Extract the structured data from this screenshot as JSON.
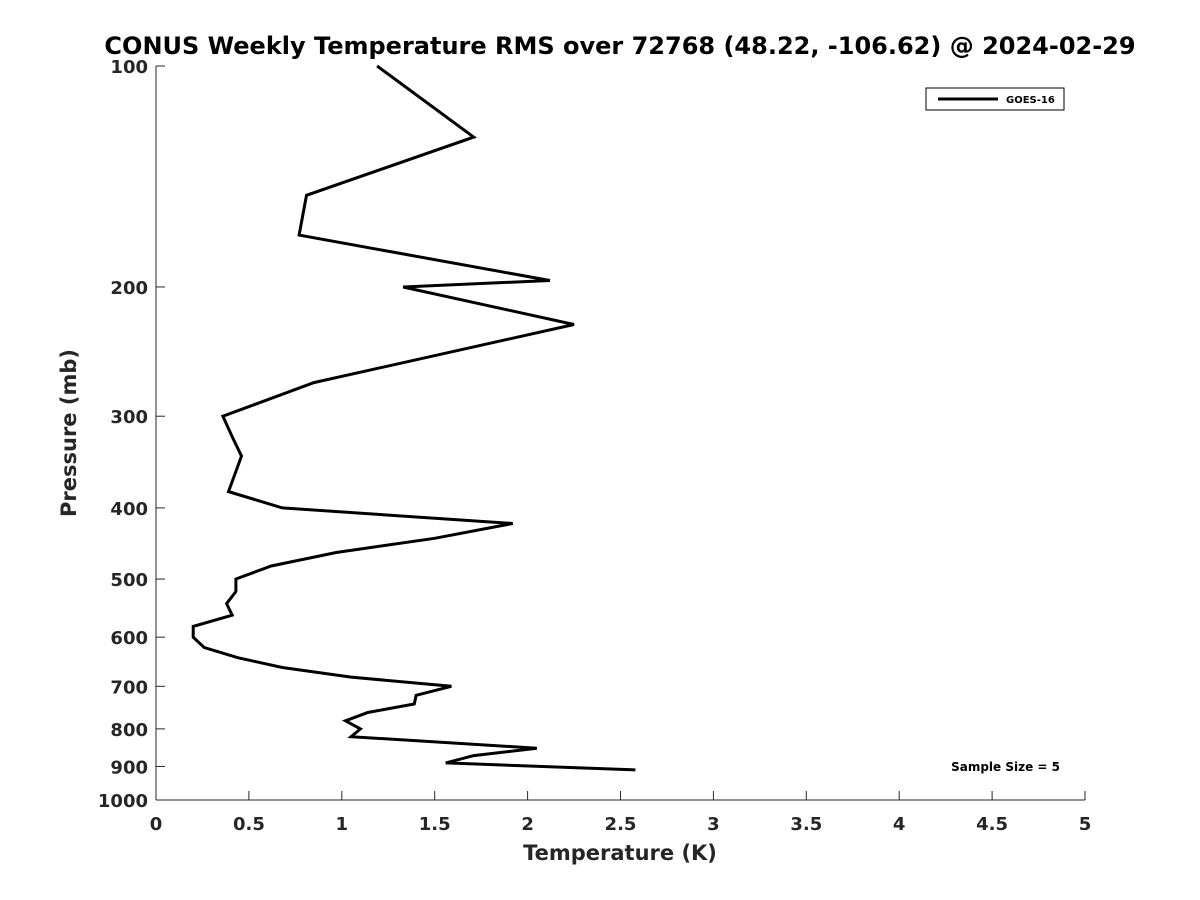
{
  "chart_data": {
    "type": "line",
    "title": "CONUS Weekly Temperature RMS over 72768 (48.22, -106.62) @ 2024-02-29",
    "xlabel": "Temperature (K)",
    "ylabel": "Pressure (mb)",
    "xlim": [
      0,
      5
    ],
    "ylim": [
      100,
      1000
    ],
    "yscale": "log",
    "yreversed": true,
    "xticks": [
      "0",
      "0.5",
      "1",
      "1.5",
      "2",
      "2.5",
      "3",
      "3.5",
      "4",
      "4.5",
      "5"
    ],
    "yticks": [
      "100",
      "200",
      "300",
      "400",
      "500",
      "600",
      "700",
      "800",
      "900",
      "1000"
    ],
    "grid": false,
    "legend_position": "top-right",
    "series": [
      {
        "name": "GOES-16",
        "color": "#000000",
        "x": [
          1.19,
          1.71,
          0.81,
          0.77,
          2.12,
          1.33,
          2.25,
          0.85,
          0.36,
          0.41,
          0.46,
          0.39,
          0.68,
          1.92,
          1.5,
          0.97,
          0.62,
          0.43,
          0.43,
          0.38,
          0.41,
          0.2,
          0.2,
          0.26,
          0.44,
          0.68,
          1.05,
          1.59,
          1.4,
          1.39,
          1.14,
          1.02,
          1.1,
          1.05,
          2.05,
          1.71,
          1.56,
          2.58
        ],
        "y": [
          100,
          125,
          150,
          170,
          196,
          200,
          225,
          270,
          300,
          320,
          340,
          380,
          400,
          420,
          440,
          460,
          480,
          500,
          520,
          540,
          560,
          580,
          600,
          620,
          640,
          660,
          680,
          700,
          720,
          740,
          760,
          780,
          800,
          820,
          850,
          870,
          890,
          910
        ]
      }
    ],
    "annotation": "Sample Size = 5"
  }
}
